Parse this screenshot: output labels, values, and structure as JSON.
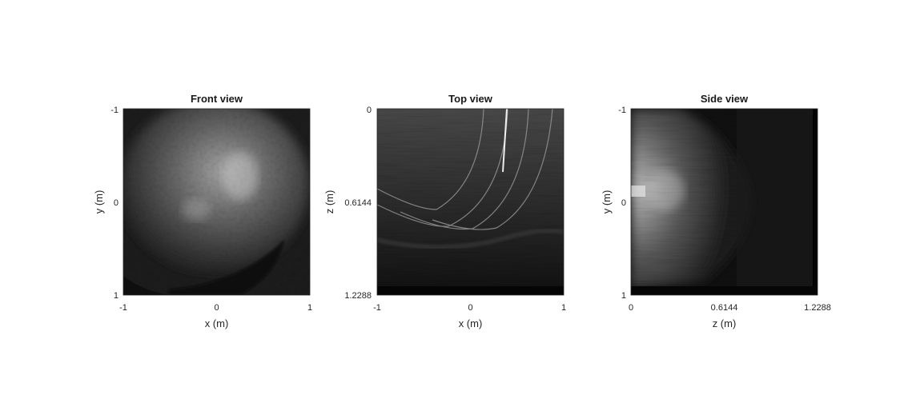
{
  "chart_data": [
    {
      "type": "heatmap",
      "title": "Front view",
      "xlabel": "x (m)",
      "ylabel": "y (m)",
      "xlim": [
        -1,
        1
      ],
      "ylim": [
        -1,
        1
      ],
      "x_ticks": [
        "-1",
        "0",
        "1"
      ],
      "y_ticks": [
        "-1",
        "0",
        "1"
      ],
      "colormap": "gray",
      "grid": false
    },
    {
      "type": "heatmap",
      "title": "Top view",
      "xlabel": "x (m)",
      "ylabel": "z (m)",
      "xlim": [
        -1,
        1
      ],
      "ylim": [
        0,
        1.2288
      ],
      "x_ticks": [
        "-1",
        "0",
        "1"
      ],
      "y_ticks": [
        "0",
        "0.6144",
        "1.2288"
      ],
      "colormap": "gray",
      "grid": false
    },
    {
      "type": "heatmap",
      "title": "Side view",
      "xlabel": "z (m)",
      "ylabel": "y (m)",
      "xlim": [
        0,
        1.2288
      ],
      "ylim": [
        -1,
        1
      ],
      "x_ticks": [
        "0",
        "0.6144",
        "1.2288"
      ],
      "y_ticks": [
        "-1",
        "0",
        "1"
      ],
      "colormap": "gray",
      "grid": false
    }
  ]
}
